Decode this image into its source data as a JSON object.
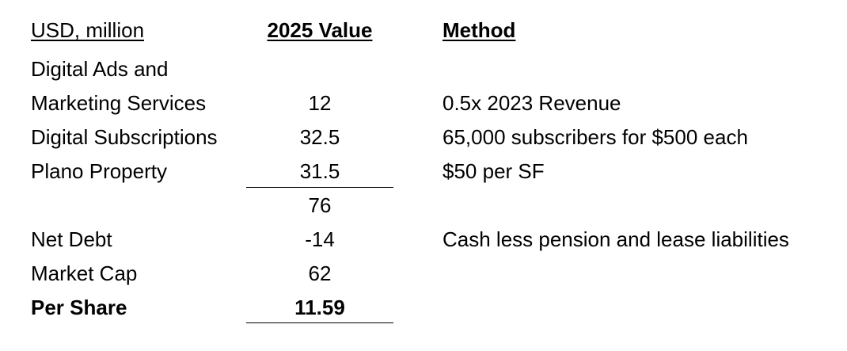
{
  "header": {
    "label": "USD, million",
    "value": "2025 Value",
    "method": "Method"
  },
  "rows": [
    {
      "label": "Digital Ads and",
      "value": "",
      "method": ""
    },
    {
      "label": "Marketing Services",
      "value": "12",
      "method": "0.5x 2023 Revenue"
    },
    {
      "label": "Digital Subscriptions",
      "value": "32.5",
      "method": "65,000 subscribers for $500 each"
    },
    {
      "label": "Plano Property",
      "value": "31.5",
      "method": "$50 per SF"
    },
    {
      "label": "",
      "value": "76",
      "method": ""
    },
    {
      "label": "Net Debt",
      "value": "-14",
      "method": "Cash less pension and lease liabilities"
    },
    {
      "label": "Market Cap",
      "value": "62",
      "method": ""
    },
    {
      "label": "Per Share",
      "value": "11.59",
      "method": ""
    }
  ]
}
